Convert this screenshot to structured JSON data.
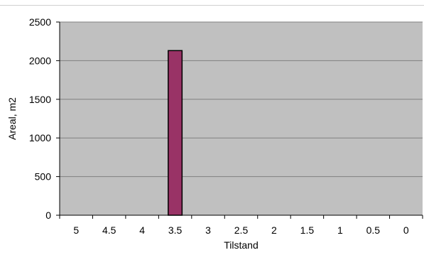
{
  "chart_data": {
    "type": "bar",
    "categories": [
      "5",
      "4.5",
      "4",
      "3.5",
      "3",
      "2.5",
      "2",
      "1.5",
      "1",
      "0.5",
      "0"
    ],
    "values": [
      0,
      0,
      0,
      2130,
      0,
      0,
      0,
      0,
      0,
      0,
      0
    ],
    "xlabel": "Tilstand",
    "ylabel": "Areal, m2",
    "ylim": [
      0,
      2500
    ],
    "yticks": [
      "0",
      "500",
      "1000",
      "1500",
      "2000",
      "2500"
    ],
    "grid": true,
    "legend": "none",
    "colors": {
      "plot_background": "#c0c0c0",
      "bar_fill": "#993366",
      "bar_stroke": "#000000",
      "gridline": "#808080"
    }
  }
}
